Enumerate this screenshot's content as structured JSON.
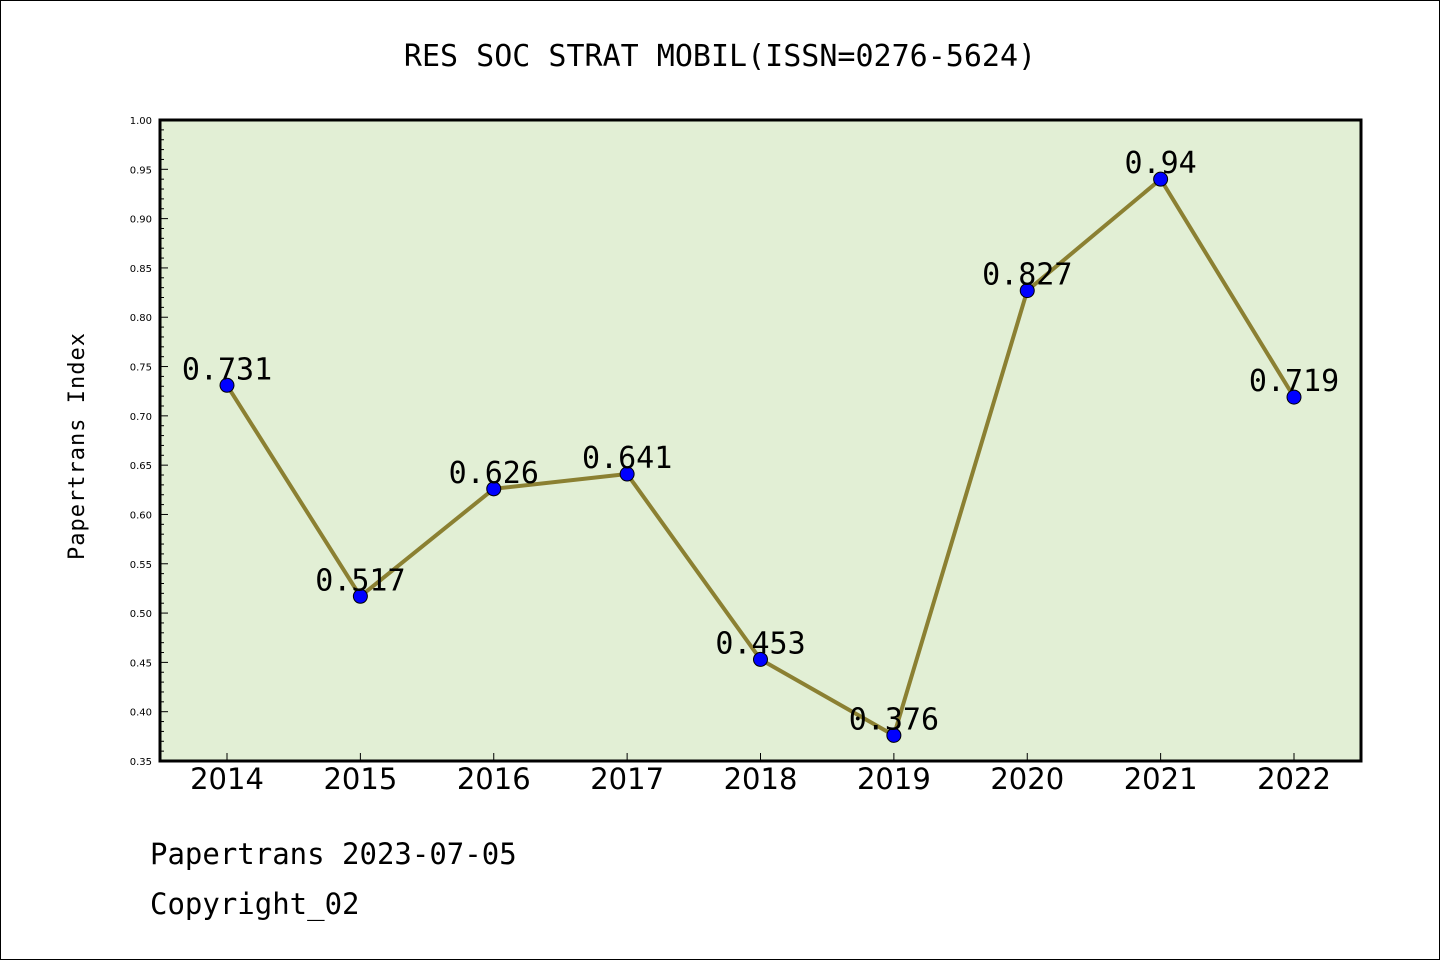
{
  "chart_data": {
    "type": "line",
    "title": "RES SOC STRAT MOBIL(ISSN=0276-5624)",
    "ylabel": "Papertrans Index",
    "xlabel": "",
    "categories": [
      "2014",
      "2015",
      "2016",
      "2017",
      "2018",
      "2019",
      "2020",
      "2021",
      "2022"
    ],
    "values": [
      0.731,
      0.517,
      0.626,
      0.641,
      0.453,
      0.376,
      0.827,
      0.94,
      0.719
    ],
    "data_labels": [
      "0.731",
      "0.517",
      "0.626",
      "0.641",
      "0.453",
      "0.376",
      "0.827",
      "0.94",
      "0.719"
    ],
    "ylim": [
      0.35,
      1.0
    ],
    "yticks": [
      "0.35",
      "0.40",
      "0.45",
      "0.50",
      "0.55",
      "0.60",
      "0.65",
      "0.70",
      "0.75",
      "0.80",
      "0.85",
      "0.90",
      "0.95",
      "1.00"
    ],
    "grid": false,
    "legend": "none",
    "colors": {
      "plot_background": "#e2efd5",
      "line": "#8b8032",
      "marker": "#0000ff"
    }
  },
  "footer": {
    "line1": "Papertrans 2023-07-05",
    "line2": "Copyright_02"
  }
}
